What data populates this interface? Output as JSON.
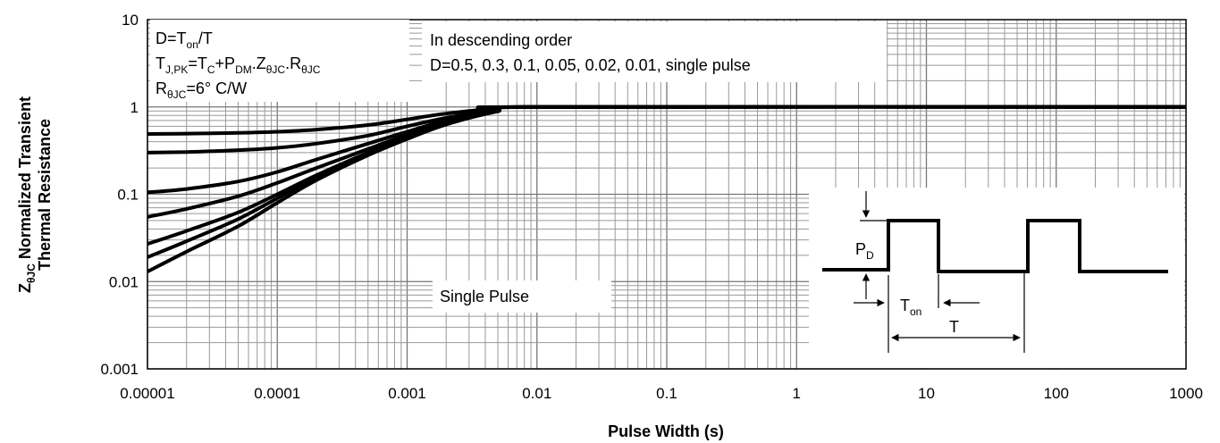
{
  "chart_data": {
    "type": "line",
    "xscale": "log",
    "yscale": "log",
    "xlim": [
      1e-05,
      1000
    ],
    "ylim": [
      0.001,
      10
    ],
    "grid": true,
    "xlabel": "Pulse Width (s)",
    "ylabel": {
      "line1_prefix": "Z",
      "line1_sub": "θJC",
      "line1_rest": " Normalized Transient",
      "line2": "Thermal Resistance"
    },
    "x_ticks": [
      "0.00001",
      "0.0001",
      "0.001",
      "0.01",
      "0.1",
      "1",
      "10",
      "100",
      "1000"
    ],
    "y_ticks": [
      "0.001",
      "0.01",
      "0.1",
      "1",
      "10"
    ],
    "series": [
      {
        "x": [
          1e-05,
          2e-05,
          5e-05,
          0.0001,
          0.0002,
          0.0005,
          0.001,
          0.002,
          0.005,
          0.01,
          1000
        ],
        "y": [
          0.49,
          0.495,
          0.505,
          0.52,
          0.55,
          0.62,
          0.72,
          0.84,
          0.96,
          1.0,
          1.0
        ]
      },
      {
        "x": [
          1e-05,
          2e-05,
          5e-05,
          0.0001,
          0.0002,
          0.0005,
          0.001,
          0.002,
          0.005,
          0.01,
          1000
        ],
        "y": [
          0.3,
          0.305,
          0.32,
          0.34,
          0.38,
          0.47,
          0.6,
          0.75,
          0.93,
          1.0,
          1.0
        ]
      },
      {
        "x": [
          1e-05,
          2e-05,
          5e-05,
          0.0001,
          0.0002,
          0.0005,
          0.001,
          0.002,
          0.005,
          0.01,
          1000
        ],
        "y": [
          0.105,
          0.115,
          0.14,
          0.18,
          0.25,
          0.38,
          0.52,
          0.7,
          0.92,
          1.0,
          1.0
        ]
      },
      {
        "x": [
          1e-05,
          2e-05,
          5e-05,
          0.0001,
          0.0002,
          0.0005,
          0.001,
          0.002,
          0.005,
          0.01,
          1000
        ],
        "y": [
          0.055,
          0.068,
          0.095,
          0.135,
          0.2,
          0.33,
          0.48,
          0.67,
          0.91,
          1.0,
          1.0
        ]
      },
      {
        "x": [
          1e-05,
          2e-05,
          5e-05,
          0.0001,
          0.0002,
          0.0005,
          0.001,
          0.002,
          0.005,
          0.01,
          1000
        ],
        "y": [
          0.027,
          0.038,
          0.062,
          0.1,
          0.165,
          0.3,
          0.45,
          0.65,
          0.9,
          1.0,
          1.0
        ]
      },
      {
        "x": [
          1e-05,
          2e-05,
          5e-05,
          0.0001,
          0.0002,
          0.0005,
          0.001,
          0.002,
          0.005,
          0.01,
          1000
        ],
        "y": [
          0.019,
          0.029,
          0.052,
          0.09,
          0.155,
          0.29,
          0.44,
          0.64,
          0.9,
          1.0,
          1.0
        ]
      },
      {
        "x": [
          1e-05,
          2e-05,
          5e-05,
          0.0001,
          0.0002,
          0.0005,
          0.001,
          0.002,
          0.005,
          0.01,
          1000
        ],
        "y": [
          0.013,
          0.022,
          0.043,
          0.08,
          0.145,
          0.28,
          0.43,
          0.63,
          0.89,
          1.0,
          1.0
        ]
      }
    ],
    "annotations": {
      "eq1": {
        "a": "D=T",
        "a_sub": "on",
        "b": "/T"
      },
      "eq2": {
        "a": "T",
        "a_sub": "J,PK",
        "b": "=T",
        "b_sub": "C",
        "c": "+P",
        "c_sub": "DM",
        "d": ".Z",
        "d_sub": "θJC",
        "e": ".R",
        "e_sub": "θJC"
      },
      "eq3": {
        "a": "R",
        "a_sub": "θJC",
        "b": "=6°  C/W"
      },
      "order1": "In descending order",
      "order2": "D=0.5, 0.3, 0.1, 0.05, 0.02, 0.01, single pulse",
      "single": "Single Pulse",
      "pd": {
        "a": "P",
        "a_sub": "D"
      },
      "ton": {
        "a": "T",
        "a_sub": "on"
      },
      "t": "T"
    }
  }
}
